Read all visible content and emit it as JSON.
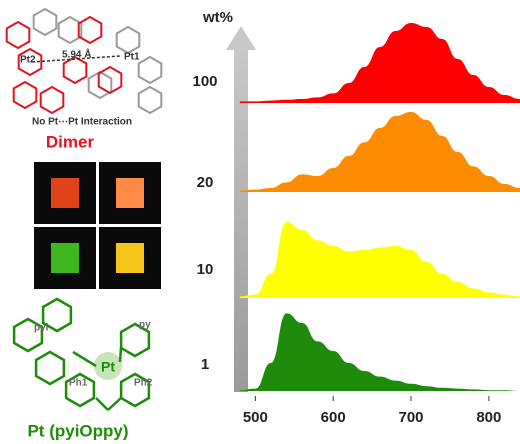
{
  "chart_data": {
    "type": "area",
    "legend_title": "wt%",
    "x": [
      480,
      500,
      520,
      540,
      560,
      580,
      600,
      620,
      640,
      660,
      680,
      700,
      720,
      740,
      760,
      780,
      800,
      820,
      840
    ],
    "series": [
      {
        "name": "100",
        "color": "#ff0000",
        "values": [
          0.02,
          0.02,
          0.03,
          0.04,
          0.05,
          0.07,
          0.12,
          0.25,
          0.45,
          0.7,
          0.9,
          1.0,
          0.95,
          0.8,
          0.55,
          0.35,
          0.2,
          0.1,
          0.05
        ]
      },
      {
        "name": "20",
        "color": "#ff8c00",
        "values": [
          0.02,
          0.03,
          0.05,
          0.12,
          0.22,
          0.2,
          0.3,
          0.45,
          0.62,
          0.8,
          0.95,
          1.0,
          0.9,
          0.7,
          0.5,
          0.32,
          0.2,
          0.1,
          0.05
        ]
      },
      {
        "name": "10",
        "color": "#ffff00",
        "values": [
          0.02,
          0.04,
          0.3,
          0.95,
          0.85,
          0.72,
          0.65,
          0.58,
          0.6,
          0.63,
          0.65,
          0.6,
          0.45,
          0.3,
          0.2,
          0.12,
          0.07,
          0.04,
          0.02
        ]
      },
      {
        "name": "1",
        "color": "#1e8c0a",
        "values": [
          0.01,
          0.03,
          0.35,
          0.97,
          0.85,
          0.62,
          0.5,
          0.35,
          0.25,
          0.18,
          0.13,
          0.09,
          0.06,
          0.04,
          0.03,
          0.02,
          0.01,
          0.01,
          0
        ]
      }
    ],
    "xlim": [
      470,
      840
    ],
    "xticks": [
      500,
      600,
      700,
      800
    ],
    "ylim": [
      0,
      1
    ]
  },
  "structures": {
    "dimer": {
      "title": "Dimer",
      "distance": "5.94 Å",
      "left_label": "Pt2",
      "right_label": "Pt1",
      "note": "No Pt⋯Pt Interaction"
    },
    "monomer": {
      "title": "Pt (pyiOppy)",
      "ring_labels": [
        "pyi",
        "py",
        "Pt",
        "Ph1",
        "Ph2"
      ]
    }
  }
}
